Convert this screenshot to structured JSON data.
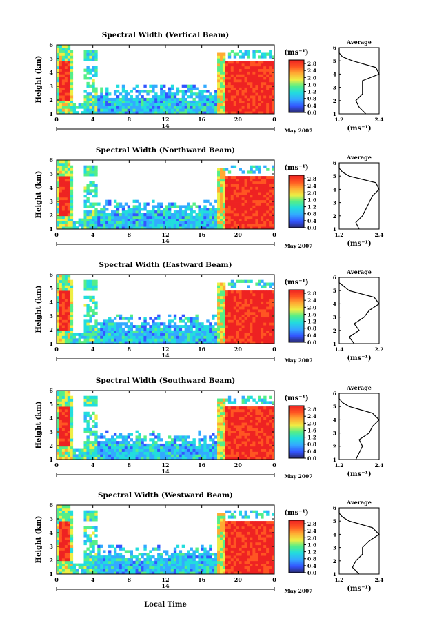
{
  "figure": {
    "xlabel": "Local Time",
    "date_label": "May 2007",
    "day_label": "14",
    "ylabel": "Height (km)",
    "colorbar_unit": "(ms⁻¹)",
    "avg_xlabel": "(ms⁻¹)",
    "avg_title": "Average"
  },
  "colors": {
    "colormap": [
      "#2a2a6e",
      "#3355ff",
      "#33aaff",
      "#22dddd",
      "#55ee88",
      "#eeee44",
      "#ffaa33",
      "#ff5522",
      "#ee2222"
    ],
    "text": "#000000"
  },
  "chart_data": [
    {
      "type": "heatmap",
      "title": "Spectral Width (Vertical Beam)",
      "x_ticks": [
        "0",
        "4",
        "8",
        "12",
        "16",
        "20",
        "0"
      ],
      "y_ticks": [
        "1",
        "2",
        "3",
        "4",
        "5",
        "6"
      ],
      "xlim": [
        0,
        24
      ],
      "ylim": [
        1,
        6
      ],
      "colorbar_ticks": [
        "2.8",
        "2.4",
        "2.0",
        "1.6",
        "1.2",
        "0.8",
        "0.4",
        "0.0"
      ],
      "colorbar_range": [
        0.0,
        3.0
      ],
      "avg": {
        "xticks": [
          "1.2",
          "2.4"
        ],
        "xlim": [
          1.2,
          2.4
        ],
        "heights": [
          1.0,
          1.5,
          2.0,
          2.5,
          3.0,
          3.5,
          4.0,
          4.5,
          5.0,
          5.3,
          5.6,
          6.0
        ],
        "values": [
          2.0,
          1.8,
          1.7,
          1.9,
          1.9,
          1.9,
          2.4,
          2.3,
          1.6,
          1.3,
          1.2,
          1.2
        ]
      }
    },
    {
      "type": "heatmap",
      "title": "Spectral Width (Northward Beam)",
      "x_ticks": [
        "0",
        "4",
        "8",
        "12",
        "16",
        "20",
        "0"
      ],
      "y_ticks": [
        "1",
        "2",
        "3",
        "4",
        "5",
        "6"
      ],
      "xlim": [
        0,
        24
      ],
      "ylim": [
        1,
        6
      ],
      "colorbar_ticks": [
        "2.8",
        "2.4",
        "2.0",
        "1.6",
        "1.2",
        "0.8",
        "0.4",
        "0.0"
      ],
      "colorbar_range": [
        0.0,
        3.0
      ],
      "avg": {
        "xticks": [
          "1.2",
          "2.4"
        ],
        "xlim": [
          1.2,
          2.4
        ],
        "heights": [
          1.0,
          1.5,
          2.0,
          2.5,
          3.0,
          3.5,
          4.0,
          4.5,
          5.0,
          5.3,
          5.6,
          6.0
        ],
        "values": [
          1.8,
          1.7,
          1.9,
          2.0,
          2.1,
          2.2,
          2.4,
          2.3,
          1.5,
          1.3,
          1.2,
          1.2
        ]
      }
    },
    {
      "type": "heatmap",
      "title": "Spectral Width (Eastward Beam)",
      "x_ticks": [
        "0",
        "4",
        "8",
        "12",
        "16",
        "20",
        "0"
      ],
      "y_ticks": [
        "1",
        "2",
        "3",
        "4",
        "5",
        "6"
      ],
      "xlim": [
        0,
        24
      ],
      "ylim": [
        1,
        6
      ],
      "colorbar_ticks": [
        "2.8",
        "2.4",
        "2.0",
        "1.6",
        "1.2",
        "0.8",
        "0.4",
        "0.0"
      ],
      "colorbar_range": [
        0.0,
        3.0
      ],
      "avg": {
        "xticks": [
          "1.4",
          "2.2"
        ],
        "xlim": [
          1.4,
          2.2
        ],
        "heights": [
          1.0,
          1.5,
          2.0,
          2.5,
          3.0,
          3.5,
          4.0,
          4.5,
          5.0,
          5.3,
          5.6,
          6.0
        ],
        "values": [
          1.7,
          1.6,
          1.8,
          1.7,
          1.9,
          2.0,
          2.2,
          2.1,
          1.6,
          1.5,
          1.4,
          1.4
        ]
      }
    },
    {
      "type": "heatmap",
      "title": "Spectral Width (Southward Beam)",
      "x_ticks": [
        "0",
        "4",
        "8",
        "12",
        "16",
        "20",
        "0"
      ],
      "y_ticks": [
        "1",
        "2",
        "3",
        "4",
        "5",
        "6"
      ],
      "xlim": [
        0,
        24
      ],
      "ylim": [
        1,
        6
      ],
      "colorbar_ticks": [
        "2.8",
        "2.4",
        "2.0",
        "1.6",
        "1.2",
        "0.8",
        "0.4",
        "0.0"
      ],
      "colorbar_range": [
        0.0,
        3.0
      ],
      "avg": {
        "xticks": [
          "1.2",
          "2.4"
        ],
        "xlim": [
          1.2,
          2.4
        ],
        "heights": [
          1.0,
          1.5,
          2.0,
          2.5,
          3.0,
          3.5,
          4.0,
          4.5,
          5.0,
          5.3,
          5.6,
          6.0
        ],
        "values": [
          1.7,
          1.8,
          1.9,
          1.8,
          2.1,
          2.2,
          2.4,
          2.2,
          1.5,
          1.3,
          1.2,
          1.2
        ]
      }
    },
    {
      "type": "heatmap",
      "title": "Spectral Width (Westward Beam)",
      "x_ticks": [
        "0",
        "4",
        "8",
        "12",
        "16",
        "20",
        "0"
      ],
      "y_ticks": [
        "1",
        "2",
        "3",
        "4",
        "5",
        "6"
      ],
      "xlim": [
        0,
        24
      ],
      "ylim": [
        1,
        6
      ],
      "colorbar_ticks": [
        "2.8",
        "2.4",
        "2.0",
        "1.6",
        "1.2",
        "0.8",
        "0.4",
        "0.0"
      ],
      "colorbar_range": [
        0.0,
        3.0
      ],
      "avg": {
        "xticks": [
          "1.2",
          "2.4"
        ],
        "xlim": [
          1.2,
          2.4
        ],
        "heights": [
          1.0,
          1.5,
          2.0,
          2.5,
          3.0,
          3.5,
          4.0,
          4.5,
          5.0,
          5.3,
          5.6,
          6.0
        ],
        "values": [
          1.8,
          1.6,
          1.7,
          1.9,
          1.9,
          2.1,
          2.4,
          2.2,
          1.5,
          1.3,
          1.2,
          1.2
        ]
      }
    }
  ]
}
